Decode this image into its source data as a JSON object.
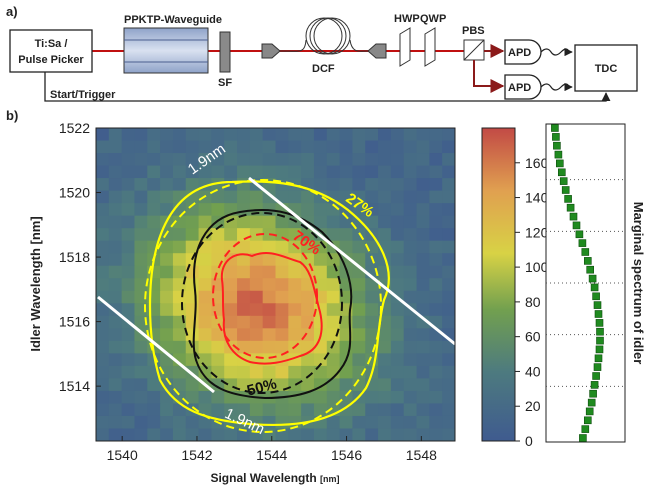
{
  "panel_a": {
    "label": "a)",
    "source": "Ti:Sa /\nPulse Picker",
    "waveguide": "PPKTP-Waveguide",
    "filter": "SF",
    "fiber": "DCF",
    "hwp": "HWP",
    "qwp": "QWP",
    "pbs": "PBS",
    "apd1": "APD",
    "apd2": "APD",
    "tdc": "TDC",
    "trigger": "Start/Trigger"
  },
  "panel_b": {
    "label": "b)"
  },
  "chart_data": [
    {
      "type": "heatmap",
      "xlabel": "Signal Wavelength",
      "xlabel_unit": "[nm]",
      "ylabel": "Idler Wavelength [nm]",
      "xlim": [
        1539.3,
        1548.9
      ],
      "ylim": [
        1512.3,
        1522.0
      ],
      "x_ticks": [
        "1540",
        "1542",
        "1544",
        "1546",
        "1548"
      ],
      "y_ticks": [
        "1514",
        "1516",
        "1518",
        "1520",
        "1522"
      ],
      "colorbar_ticks": [
        "0",
        "20",
        "40",
        "60",
        "80",
        "100",
        "120",
        "140",
        "160"
      ],
      "colorbar_range": [
        0,
        180
      ],
      "peak": {
        "x": 1543.6,
        "y": 1516.5,
        "value": 150
      },
      "contours": [
        {
          "label": "27%",
          "color": "#ffff00"
        },
        {
          "label": "50%",
          "color": "#111111"
        },
        {
          "label": "70%",
          "color": "#ff0000"
        }
      ],
      "bandwidth_labels": [
        "1.9nm",
        "1.9nm"
      ],
      "colors": {
        "low": "#3f5b8f",
        "mid": "#e0d040",
        "high": "#c0504d"
      }
    },
    {
      "type": "scatter",
      "ylabel": "Marginal spectrum of idler",
      "marker_color": "#1f8a1f",
      "values": [
        8,
        10,
        12,
        15,
        18,
        22,
        26,
        30,
        35,
        40,
        46,
        52,
        58,
        64,
        70,
        75,
        80,
        85,
        89,
        92,
        95,
        97,
        99,
        100,
        100,
        99,
        97,
        95,
        92,
        89,
        86,
        83,
        79,
        75,
        70,
        65
      ]
    }
  ]
}
